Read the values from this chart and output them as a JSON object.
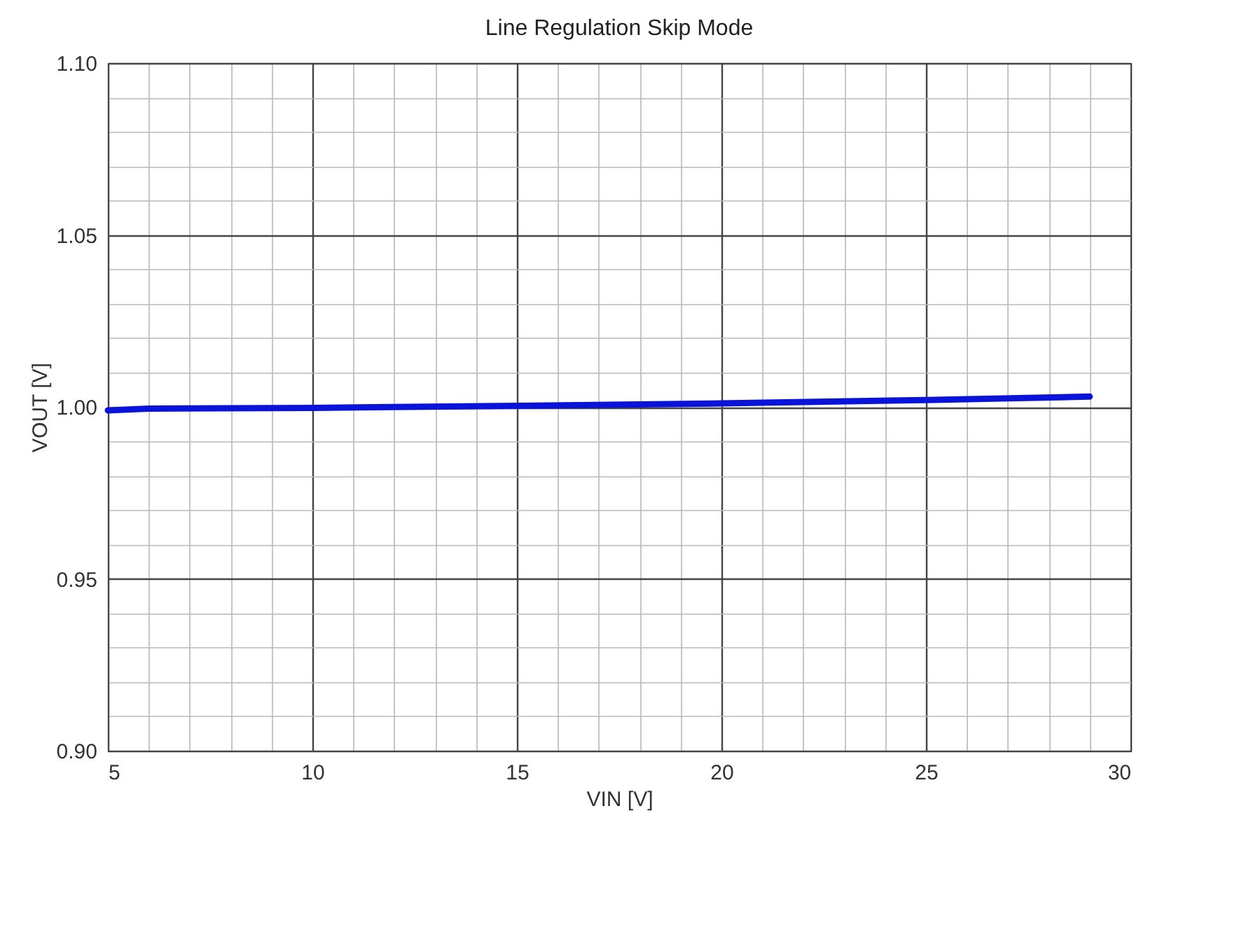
{
  "chart_data": {
    "type": "line",
    "title": "Line Regulation Skip Mode",
    "xlabel": "VIN [V]",
    "ylabel": "VOUT [V]",
    "x": [
      5,
      6,
      10,
      15,
      20,
      25,
      29
    ],
    "series": [
      {
        "color": "#0a14d8",
        "values": [
          0.999,
          0.9995,
          0.9997,
          1.0003,
          1.001,
          1.002,
          1.003
        ]
      }
    ],
    "xlim": [
      5,
      30
    ],
    "xticks": [
      5,
      10,
      15,
      20,
      25,
      30
    ],
    "ylim": [
      0.9,
      1.1
    ],
    "yticks": [
      {
        "value": 0.9,
        "label": "0.90"
      },
      0.95,
      {
        "value": 1.0,
        "label": "1.00"
      },
      1.05,
      {
        "value": 1.1,
        "label": "1.10"
      }
    ],
    "grid": true,
    "marker": "none",
    "line_style": "solid"
  }
}
